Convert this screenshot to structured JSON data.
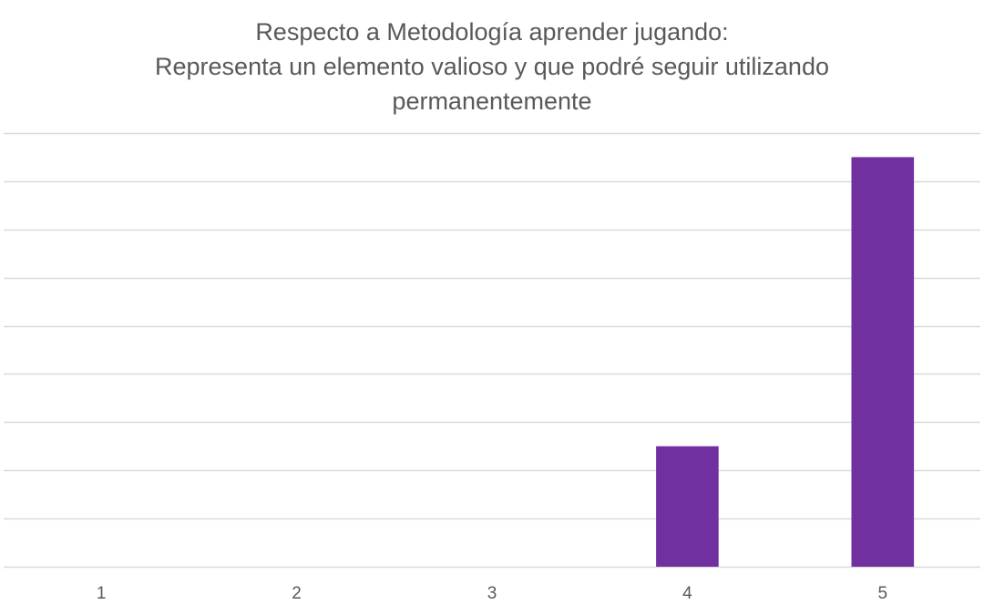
{
  "chart_data": {
    "type": "bar",
    "title": "",
    "title_lines": [
      "Respecto a Metodología  aprender jugando:",
      "Representa un elemento valioso y que podré seguir utilizando",
      "permanentemente"
    ],
    "categories": [
      "1",
      "2",
      "3",
      "4",
      "5"
    ],
    "values": [
      0,
      0,
      0,
      5,
      17
    ],
    "xlabel": "",
    "ylabel": "",
    "ylim": [
      0,
      18
    ],
    "y_gridline_step": 2,
    "y_tick_labels_shown": false,
    "grid": true,
    "legend": "none",
    "colors": {
      "bar": "#7030A0",
      "gridline": "#d9d9d9",
      "axis_text": "#595959"
    }
  }
}
